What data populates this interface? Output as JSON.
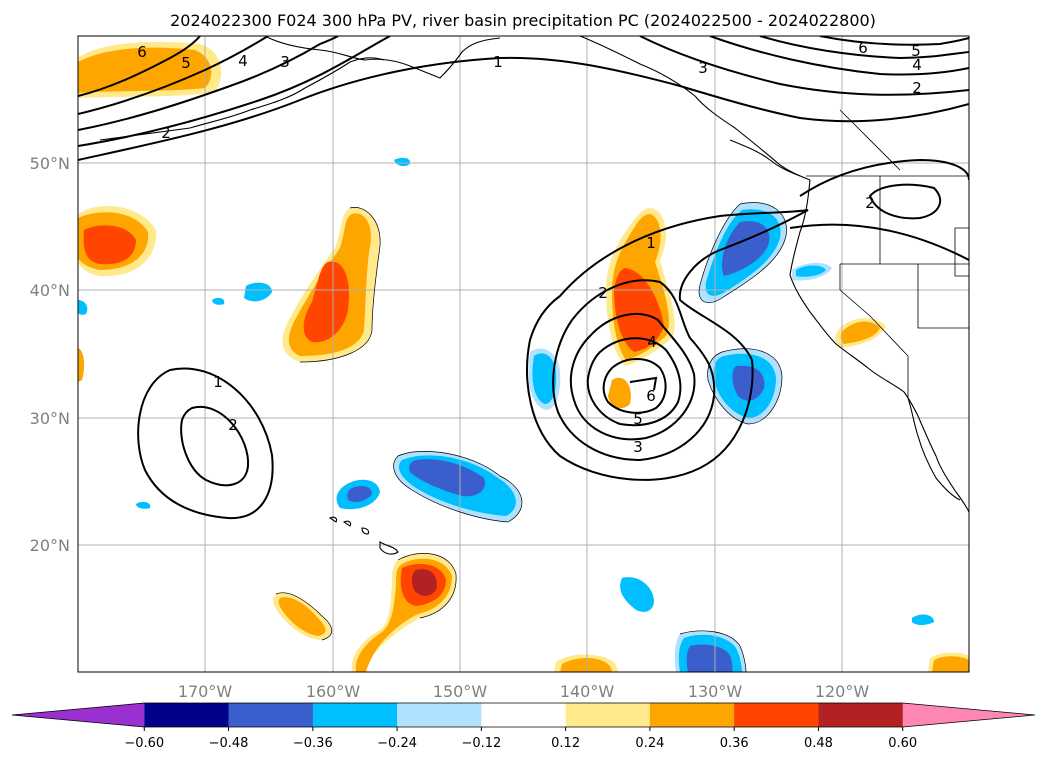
{
  "chart_data": {
    "type": "heatmap",
    "title": "2024022300 F024 300 hPa PV, river basin precipitation PC (2024022500 - 2024022800)",
    "x_ticks": [
      {
        "lon": -170,
        "label": "170°W"
      },
      {
        "lon": -160,
        "label": "160°W"
      },
      {
        "lon": -150,
        "label": "150°W"
      },
      {
        "lon": -140,
        "label": "140°W"
      },
      {
        "lon": -130,
        "label": "130°W"
      },
      {
        "lon": -120,
        "label": "120°W"
      }
    ],
    "y_ticks": [
      {
        "lat": 20,
        "label": "20°N"
      },
      {
        "lat": 30,
        "label": "30°N"
      },
      {
        "lat": 40,
        "label": "40°N"
      },
      {
        "lat": 50,
        "label": "50°N"
      }
    ],
    "lon_range": [
      -180,
      -110
    ],
    "lat_range": [
      10,
      60
    ],
    "grid": true,
    "colorbar": {
      "orientation": "horizontal",
      "extend": "both",
      "levels": [
        -0.72,
        -0.6,
        -0.48,
        -0.36,
        -0.24,
        -0.12,
        0.12,
        0.24,
        0.36,
        0.48,
        0.6,
        0.72
      ],
      "tick_labels": [
        "−0.60",
        "−0.48",
        "−0.36",
        "−0.24",
        "−0.12",
        "0.12",
        "0.24",
        "0.36",
        "0.48",
        "0.60"
      ],
      "colors": [
        "#9b30d0",
        "#00008b",
        "#3a5fcd",
        "#00bfff",
        "#b0e2ff",
        "#ffffff",
        "#ffe98a",
        "#ffa500",
        "#ff4500",
        "#b22222",
        "#ff87b4"
      ]
    },
    "pv_contour_labels": [
      "1",
      "2",
      "3",
      "4",
      "5",
      "6"
    ]
  }
}
